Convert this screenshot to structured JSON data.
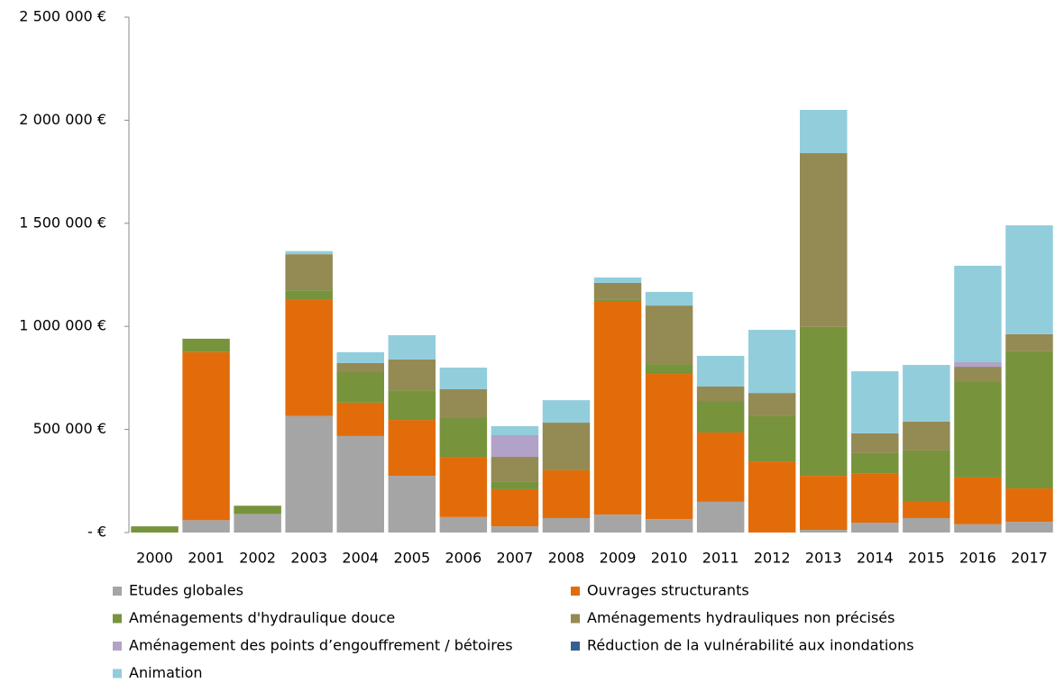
{
  "chart_data": {
    "type": "stacked_bar",
    "categories": [
      "2000",
      "2001",
      "2002",
      "2003",
      "2004",
      "2005",
      "2006",
      "2007",
      "2008",
      "2009",
      "2010",
      "2011",
      "2012",
      "2013",
      "2014",
      "2015",
      "2016",
      "2017"
    ],
    "series": [
      {
        "name": "Etudes globales",
        "color": "#a5a5a5",
        "values": [
          0,
          60000,
          90000,
          565000,
          468000,
          275000,
          75000,
          30000,
          70000,
          87000,
          65000,
          149000,
          0,
          13000,
          48000,
          70000,
          40000,
          52000
        ]
      },
      {
        "name": "Ouvrages structurants",
        "color": "#e36c0a",
        "values": [
          0,
          815000,
          0,
          563000,
          162000,
          271000,
          292000,
          180000,
          232000,
          1032000,
          704000,
          336000,
          345000,
          262000,
          240000,
          83000,
          227000,
          162000
        ]
      },
      {
        "name": "Aménagements d'hydraulique douce",
        "color": "#77933c",
        "values": [
          30000,
          65000,
          40000,
          47000,
          148000,
          144000,
          188000,
          35000,
          4000,
          9000,
          48000,
          153000,
          219000,
          722000,
          97000,
          245000,
          467000,
          666000
        ]
      },
      {
        "name": "Aménagements hydrauliques non précisés",
        "color": "#948a54",
        "values": [
          0,
          0,
          0,
          175000,
          44000,
          150000,
          140000,
          122000,
          227000,
          83000,
          284000,
          70000,
          113000,
          843000,
          96000,
          140000,
          70000,
          82000
        ]
      },
      {
        "name": "Aménagement des points d’engouffrement / bétoires",
        "color": "#b3a2c7",
        "values": [
          0,
          0,
          0,
          0,
          0,
          0,
          0,
          105000,
          0,
          0,
          0,
          0,
          0,
          0,
          0,
          0,
          22000,
          0
        ]
      },
      {
        "name": "Réduction de la vulnérabilité aux inondations",
        "color": "#376092",
        "values": [
          0,
          0,
          0,
          0,
          0,
          0,
          0,
          0,
          0,
          0,
          0,
          0,
          0,
          0,
          0,
          0,
          0,
          0
        ]
      },
      {
        "name": "Animation",
        "color": "#92cddc",
        "values": [
          0,
          0,
          0,
          15000,
          53000,
          117000,
          105000,
          44000,
          109000,
          26000,
          66000,
          149000,
          306000,
          210000,
          301000,
          275000,
          468000,
          528000
        ]
      }
    ],
    "ylim": [
      0,
      2500000
    ],
    "yticks": [
      {
        "value": 0,
        "label": "-   €"
      },
      {
        "value": 500000,
        "label": "500 000 €"
      },
      {
        "value": 1000000,
        "label": "1 000 000 €"
      },
      {
        "value": 1500000,
        "label": "1 500 000 €"
      },
      {
        "value": 2000000,
        "label": "2 000 000 €"
      },
      {
        "value": 2500000,
        "label": "2 500 000 €"
      }
    ],
    "legend": "bottom"
  }
}
